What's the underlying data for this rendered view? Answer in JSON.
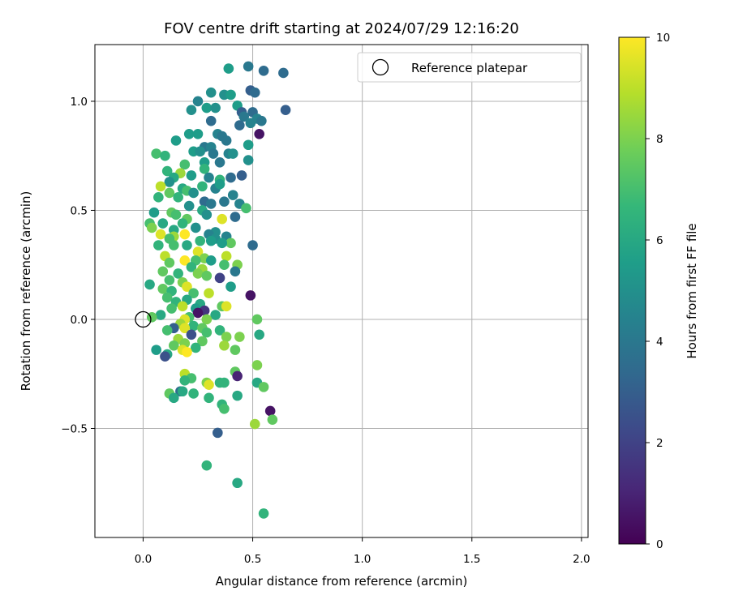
{
  "chart_data": {
    "type": "scatter",
    "title": "FOV centre drift starting at 2024/07/29 12:16:20",
    "xlabel": "Angular distance from reference (arcmin)",
    "ylabel": "Rotation from reference (arcmin)",
    "xlim": [
      -0.22,
      2.03
    ],
    "ylim": [
      -1.0,
      1.26
    ],
    "xticks": [
      0.0,
      0.5,
      1.0,
      1.5,
      2.0
    ],
    "xtick_labels": [
      "0.0",
      "0.5",
      "1.0",
      "1.5",
      "2.0"
    ],
    "yticks": [
      -0.5,
      0.0,
      0.5,
      1.0
    ],
    "ytick_labels": [
      "−0.5",
      "0.0",
      "0.5",
      "1.0"
    ],
    "grid": true,
    "legend": {
      "placement": "upper-right",
      "entries": [
        "Reference platepar"
      ]
    },
    "reference_point": {
      "x": 0.0,
      "y": 0.0
    },
    "colorbar": {
      "label": "Hours from first FF file",
      "range": [
        0,
        10
      ],
      "ticks": [
        0,
        2,
        4,
        6,
        8,
        10
      ],
      "tick_labels": [
        "0",
        "2",
        "4",
        "6",
        "8",
        "10"
      ],
      "colormap": "viridis",
      "colormap_stops": [
        "#440154",
        "#482878",
        "#3e4989",
        "#31688e",
        "#26828e",
        "#1f9e89",
        "#35b779",
        "#6ece58",
        "#b5de2b",
        "#fde725"
      ]
    },
    "points": [
      {
        "x": 0.39,
        "y": 1.15,
        "h": 5.5
      },
      {
        "x": 0.48,
        "y": 1.16,
        "h": 4.0
      },
      {
        "x": 0.55,
        "y": 1.14,
        "h": 3.5
      },
      {
        "x": 0.64,
        "y": 1.13,
        "h": 3.5
      },
      {
        "x": 0.49,
        "y": 1.05,
        "h": 3.0
      },
      {
        "x": 0.51,
        "y": 1.04,
        "h": 3.5
      },
      {
        "x": 0.37,
        "y": 1.03,
        "h": 5.0
      },
      {
        "x": 0.4,
        "y": 1.03,
        "h": 5.5
      },
      {
        "x": 0.31,
        "y": 1.04,
        "h": 5.0
      },
      {
        "x": 0.25,
        "y": 1.0,
        "h": 4.5
      },
      {
        "x": 0.43,
        "y": 0.98,
        "h": 5.5
      },
      {
        "x": 0.29,
        "y": 0.97,
        "h": 5.5
      },
      {
        "x": 0.33,
        "y": 0.97,
        "h": 5.0
      },
      {
        "x": 0.22,
        "y": 0.96,
        "h": 5.0
      },
      {
        "x": 0.65,
        "y": 0.96,
        "h": 3.0
      },
      {
        "x": 0.45,
        "y": 0.95,
        "h": 3.0
      },
      {
        "x": 0.5,
        "y": 0.95,
        "h": 3.5
      },
      {
        "x": 0.46,
        "y": 0.93,
        "h": 4.0
      },
      {
        "x": 0.52,
        "y": 0.92,
        "h": 4.5
      },
      {
        "x": 0.31,
        "y": 0.91,
        "h": 3.5
      },
      {
        "x": 0.54,
        "y": 0.91,
        "h": 4.0
      },
      {
        "x": 0.49,
        "y": 0.9,
        "h": 4.5
      },
      {
        "x": 0.44,
        "y": 0.89,
        "h": 3.5
      },
      {
        "x": 0.53,
        "y": 0.85,
        "h": 0.5
      },
      {
        "x": 0.21,
        "y": 0.85,
        "h": 5.5
      },
      {
        "x": 0.25,
        "y": 0.85,
        "h": 5.5
      },
      {
        "x": 0.34,
        "y": 0.85,
        "h": 4.5
      },
      {
        "x": 0.36,
        "y": 0.84,
        "h": 4.0
      },
      {
        "x": 0.38,
        "y": 0.82,
        "h": 4.0
      },
      {
        "x": 0.15,
        "y": 0.82,
        "h": 5.5
      },
      {
        "x": 0.48,
        "y": 0.8,
        "h": 5.5
      },
      {
        "x": 0.28,
        "y": 0.79,
        "h": 4.0
      },
      {
        "x": 0.31,
        "y": 0.79,
        "h": 4.5
      },
      {
        "x": 0.23,
        "y": 0.77,
        "h": 5.5
      },
      {
        "x": 0.26,
        "y": 0.77,
        "h": 5.0
      },
      {
        "x": 0.32,
        "y": 0.76,
        "h": 4.0
      },
      {
        "x": 0.39,
        "y": 0.76,
        "h": 4.5
      },
      {
        "x": 0.41,
        "y": 0.76,
        "h": 5.0
      },
      {
        "x": 0.06,
        "y": 0.76,
        "h": 7.0
      },
      {
        "x": 0.1,
        "y": 0.75,
        "h": 6.5
      },
      {
        "x": 0.28,
        "y": 0.72,
        "h": 5.5
      },
      {
        "x": 0.48,
        "y": 0.73,
        "h": 5.0
      },
      {
        "x": 0.35,
        "y": 0.72,
        "h": 4.0
      },
      {
        "x": 0.19,
        "y": 0.71,
        "h": 7.0
      },
      {
        "x": 0.28,
        "y": 0.69,
        "h": 6.5
      },
      {
        "x": 0.11,
        "y": 0.68,
        "h": 6.5
      },
      {
        "x": 0.17,
        "y": 0.67,
        "h": 8.5
      },
      {
        "x": 0.45,
        "y": 0.66,
        "h": 3.0
      },
      {
        "x": 0.22,
        "y": 0.66,
        "h": 5.5
      },
      {
        "x": 0.3,
        "y": 0.65,
        "h": 4.5
      },
      {
        "x": 0.4,
        "y": 0.65,
        "h": 3.5
      },
      {
        "x": 0.14,
        "y": 0.65,
        "h": 6.0
      },
      {
        "x": 0.35,
        "y": 0.64,
        "h": 6.5
      },
      {
        "x": 0.12,
        "y": 0.63,
        "h": 5.0
      },
      {
        "x": 0.08,
        "y": 0.61,
        "h": 9.0
      },
      {
        "x": 0.18,
        "y": 0.6,
        "h": 6.0
      },
      {
        "x": 0.27,
        "y": 0.61,
        "h": 6.5
      },
      {
        "x": 0.33,
        "y": 0.6,
        "h": 4.5
      },
      {
        "x": 0.35,
        "y": 0.62,
        "h": 5.5
      },
      {
        "x": 0.2,
        "y": 0.59,
        "h": 7.0
      },
      {
        "x": 0.12,
        "y": 0.58,
        "h": 7.5
      },
      {
        "x": 0.23,
        "y": 0.58,
        "h": 5.0
      },
      {
        "x": 0.41,
        "y": 0.57,
        "h": 4.5
      },
      {
        "x": 0.07,
        "y": 0.56,
        "h": 6.5
      },
      {
        "x": 0.16,
        "y": 0.56,
        "h": 6.5
      },
      {
        "x": 0.28,
        "y": 0.54,
        "h": 3.5
      },
      {
        "x": 0.31,
        "y": 0.53,
        "h": 4.0
      },
      {
        "x": 0.37,
        "y": 0.54,
        "h": 4.0
      },
      {
        "x": 0.44,
        "y": 0.53,
        "h": 4.5
      },
      {
        "x": 0.21,
        "y": 0.52,
        "h": 5.0
      },
      {
        "x": 0.47,
        "y": 0.51,
        "h": 7.0
      },
      {
        "x": 0.27,
        "y": 0.5,
        "h": 6.0
      },
      {
        "x": 0.13,
        "y": 0.49,
        "h": 7.5
      },
      {
        "x": 0.05,
        "y": 0.49,
        "h": 5.5
      },
      {
        "x": 0.15,
        "y": 0.48,
        "h": 7.0
      },
      {
        "x": 0.29,
        "y": 0.48,
        "h": 5.0
      },
      {
        "x": 0.42,
        "y": 0.47,
        "h": 3.5
      },
      {
        "x": 0.36,
        "y": 0.46,
        "h": 9.5
      },
      {
        "x": 0.2,
        "y": 0.46,
        "h": 7.5
      },
      {
        "x": 0.03,
        "y": 0.44,
        "h": 7.0
      },
      {
        "x": 0.09,
        "y": 0.44,
        "h": 6.0
      },
      {
        "x": 0.18,
        "y": 0.44,
        "h": 6.5
      },
      {
        "x": 0.24,
        "y": 0.42,
        "h": 5.0
      },
      {
        "x": 0.04,
        "y": 0.42,
        "h": 8.0
      },
      {
        "x": 0.14,
        "y": 0.41,
        "h": 6.0
      },
      {
        "x": 0.33,
        "y": 0.4,
        "h": 5.0
      },
      {
        "x": 0.08,
        "y": 0.39,
        "h": 9.5
      },
      {
        "x": 0.19,
        "y": 0.39,
        "h": 10.0
      },
      {
        "x": 0.3,
        "y": 0.39,
        "h": 4.5
      },
      {
        "x": 0.38,
        "y": 0.38,
        "h": 4.5
      },
      {
        "x": 0.14,
        "y": 0.38,
        "h": 8.5
      },
      {
        "x": 0.12,
        "y": 0.37,
        "h": 7.0
      },
      {
        "x": 0.33,
        "y": 0.37,
        "h": 5.0
      },
      {
        "x": 0.26,
        "y": 0.36,
        "h": 6.5
      },
      {
        "x": 0.31,
        "y": 0.36,
        "h": 5.5
      },
      {
        "x": 0.4,
        "y": 0.35,
        "h": 7.5
      },
      {
        "x": 0.5,
        "y": 0.34,
        "h": 3.5
      },
      {
        "x": 0.07,
        "y": 0.34,
        "h": 6.5
      },
      {
        "x": 0.2,
        "y": 0.34,
        "h": 6.0
      },
      {
        "x": 0.14,
        "y": 0.34,
        "h": 7.0
      },
      {
        "x": 0.36,
        "y": 0.35,
        "h": 5.5
      },
      {
        "x": 0.25,
        "y": 0.31,
        "h": 9.5
      },
      {
        "x": 0.1,
        "y": 0.29,
        "h": 9.0
      },
      {
        "x": 0.38,
        "y": 0.29,
        "h": 9.0
      },
      {
        "x": 0.28,
        "y": 0.28,
        "h": 8.0
      },
      {
        "x": 0.19,
        "y": 0.27,
        "h": 10.0
      },
      {
        "x": 0.24,
        "y": 0.27,
        "h": 7.0
      },
      {
        "x": 0.31,
        "y": 0.27,
        "h": 5.5
      },
      {
        "x": 0.12,
        "y": 0.26,
        "h": 7.5
      },
      {
        "x": 0.37,
        "y": 0.25,
        "h": 7.0
      },
      {
        "x": 0.43,
        "y": 0.25,
        "h": 8.0
      },
      {
        "x": 0.22,
        "y": 0.24,
        "h": 6.5
      },
      {
        "x": 0.27,
        "y": 0.23,
        "h": 8.5
      },
      {
        "x": 0.42,
        "y": 0.22,
        "h": 4.0
      },
      {
        "x": 0.09,
        "y": 0.22,
        "h": 7.5
      },
      {
        "x": 0.16,
        "y": 0.21,
        "h": 6.5
      },
      {
        "x": 0.25,
        "y": 0.21,
        "h": 8.0
      },
      {
        "x": 0.29,
        "y": 0.2,
        "h": 7.5
      },
      {
        "x": 0.35,
        "y": 0.19,
        "h": 2.0
      },
      {
        "x": 0.12,
        "y": 0.18,
        "h": 7.0
      },
      {
        "x": 0.18,
        "y": 0.17,
        "h": 8.0
      },
      {
        "x": 0.03,
        "y": 0.16,
        "h": 6.0
      },
      {
        "x": 0.2,
        "y": 0.15,
        "h": 9.5
      },
      {
        "x": 0.4,
        "y": 0.15,
        "h": 5.5
      },
      {
        "x": 0.09,
        "y": 0.14,
        "h": 7.5
      },
      {
        "x": 0.13,
        "y": 0.13,
        "h": 6.5
      },
      {
        "x": 0.23,
        "y": 0.12,
        "h": 7.0
      },
      {
        "x": 0.3,
        "y": 0.12,
        "h": 9.0
      },
      {
        "x": 0.11,
        "y": 0.1,
        "h": 7.0
      },
      {
        "x": 0.49,
        "y": 0.11,
        "h": 0.5
      },
      {
        "x": 0.2,
        "y": 0.09,
        "h": 6.0
      },
      {
        "x": 0.15,
        "y": 0.08,
        "h": 6.5
      },
      {
        "x": 0.26,
        "y": 0.07,
        "h": 6.0
      },
      {
        "x": 0.18,
        "y": 0.06,
        "h": 9.0
      },
      {
        "x": 0.36,
        "y": 0.06,
        "h": 7.5
      },
      {
        "x": 0.38,
        "y": 0.06,
        "h": 9.5
      },
      {
        "x": 0.13,
        "y": 0.05,
        "h": 7.0
      },
      {
        "x": 0.24,
        "y": 0.05,
        "h": 5.5
      },
      {
        "x": 0.28,
        "y": 0.04,
        "h": 1.5
      },
      {
        "x": 0.25,
        "y": 0.03,
        "h": 0.5
      },
      {
        "x": 0.33,
        "y": 0.02,
        "h": 6.0
      },
      {
        "x": 0.08,
        "y": 0.02,
        "h": 6.0
      },
      {
        "x": 0.21,
        "y": 0.01,
        "h": 7.0
      },
      {
        "x": 0.19,
        "y": 0.0,
        "h": 9.5
      },
      {
        "x": 0.29,
        "y": 0.0,
        "h": 8.0
      },
      {
        "x": 0.52,
        "y": 0.0,
        "h": 7.5
      },
      {
        "x": 0.04,
        "y": 0.01,
        "h": 7.5
      },
      {
        "x": 0.17,
        "y": -0.02,
        "h": 8.5
      },
      {
        "x": 0.23,
        "y": -0.03,
        "h": 6.5
      },
      {
        "x": 0.27,
        "y": -0.04,
        "h": 7.5
      },
      {
        "x": 0.14,
        "y": -0.04,
        "h": 3.0
      },
      {
        "x": 0.19,
        "y": -0.04,
        "h": 9.5
      },
      {
        "x": 0.35,
        "y": -0.05,
        "h": 6.5
      },
      {
        "x": 0.11,
        "y": -0.05,
        "h": 7.0
      },
      {
        "x": 0.29,
        "y": -0.06,
        "h": 7.0
      },
      {
        "x": 0.53,
        "y": -0.07,
        "h": 6.0
      },
      {
        "x": 0.22,
        "y": -0.07,
        "h": 2.5
      },
      {
        "x": 0.38,
        "y": -0.08,
        "h": 8.0
      },
      {
        "x": 0.44,
        "y": -0.08,
        "h": 8.0
      },
      {
        "x": 0.16,
        "y": -0.09,
        "h": 8.5
      },
      {
        "x": 0.27,
        "y": -0.1,
        "h": 7.5
      },
      {
        "x": 0.19,
        "y": -0.11,
        "h": 8.0
      },
      {
        "x": 0.37,
        "y": -0.12,
        "h": 8.5
      },
      {
        "x": 0.14,
        "y": -0.12,
        "h": 7.5
      },
      {
        "x": 0.24,
        "y": -0.13,
        "h": 6.5
      },
      {
        "x": 0.42,
        "y": -0.14,
        "h": 7.5
      },
      {
        "x": 0.18,
        "y": -0.14,
        "h": 9.5
      },
      {
        "x": 0.06,
        "y": -0.14,
        "h": 5.5
      },
      {
        "x": 0.11,
        "y": -0.16,
        "h": 6.0
      },
      {
        "x": 0.2,
        "y": -0.15,
        "h": 10.0
      },
      {
        "x": 0.1,
        "y": -0.17,
        "h": 2.5
      },
      {
        "x": 0.52,
        "y": -0.21,
        "h": 8.0
      },
      {
        "x": 0.42,
        "y": -0.24,
        "h": 7.5
      },
      {
        "x": 0.19,
        "y": -0.25,
        "h": 9.0
      },
      {
        "x": 0.43,
        "y": -0.26,
        "h": 1.0
      },
      {
        "x": 0.22,
        "y": -0.27,
        "h": 7.0
      },
      {
        "x": 0.35,
        "y": -0.29,
        "h": 6.5
      },
      {
        "x": 0.37,
        "y": -0.29,
        "h": 6.5
      },
      {
        "x": 0.29,
        "y": -0.29,
        "h": 8.0
      },
      {
        "x": 0.3,
        "y": -0.3,
        "h": 9.5
      },
      {
        "x": 0.52,
        "y": -0.29,
        "h": 6.0
      },
      {
        "x": 0.19,
        "y": -0.28,
        "h": 6.5
      },
      {
        "x": 0.55,
        "y": -0.31,
        "h": 7.5
      },
      {
        "x": 0.17,
        "y": -0.33,
        "h": 3.5
      },
      {
        "x": 0.18,
        "y": -0.33,
        "h": 6.0
      },
      {
        "x": 0.12,
        "y": -0.34,
        "h": 7.5
      },
      {
        "x": 0.23,
        "y": -0.34,
        "h": 6.5
      },
      {
        "x": 0.43,
        "y": -0.35,
        "h": 6.0
      },
      {
        "x": 0.14,
        "y": -0.36,
        "h": 6.0
      },
      {
        "x": 0.3,
        "y": -0.36,
        "h": 6.5
      },
      {
        "x": 0.36,
        "y": -0.39,
        "h": 6.5
      },
      {
        "x": 0.37,
        "y": -0.41,
        "h": 7.0
      },
      {
        "x": 0.58,
        "y": -0.42,
        "h": 0.5
      },
      {
        "x": 0.59,
        "y": -0.46,
        "h": 7.5
      },
      {
        "x": 0.51,
        "y": -0.48,
        "h": 8.5
      },
      {
        "x": 0.34,
        "y": -0.52,
        "h": 3.0
      },
      {
        "x": 0.29,
        "y": -0.67,
        "h": 6.5
      },
      {
        "x": 0.43,
        "y": -0.75,
        "h": 6.0
      },
      {
        "x": 0.55,
        "y": -0.89,
        "h": 6.5
      }
    ]
  }
}
